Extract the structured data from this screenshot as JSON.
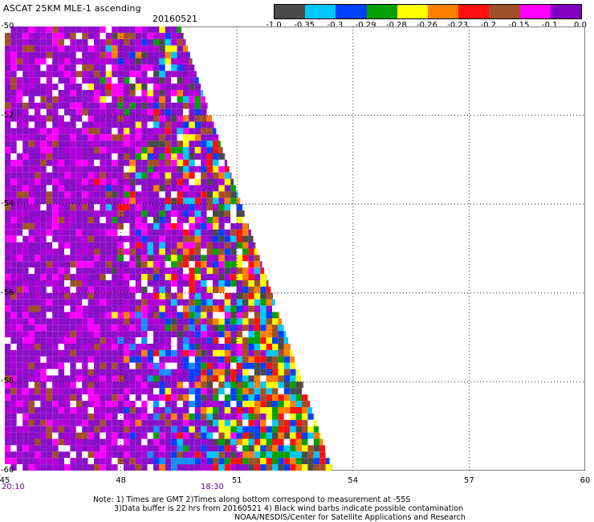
{
  "title": "ASCAT 25KM MLE-1 ascending",
  "date": "20160521",
  "colorbar": {
    "colors": [
      "#4a4a4a",
      "#00c8ff",
      "#0040ff",
      "#00a000",
      "#ffff00",
      "#ff8000",
      "#ff1010",
      "#a05028",
      "#ff00ff",
      "#8000c0"
    ],
    "labels": [
      "-1.0",
      "-0.35",
      "-0.3",
      "-0.29",
      "-0.28",
      "-0.26",
      "-0.23",
      "-0.2",
      "-0.15",
      "-0.1",
      "0.0"
    ]
  },
  "map": {
    "lon_ticks": [
      "45",
      "48",
      "51",
      "54",
      "57",
      "60"
    ],
    "lat_ticks": [
      "-50",
      "-52",
      "-54",
      "-56",
      "-58",
      "-60"
    ],
    "lon_range": [
      45,
      60
    ],
    "lat_range": [
      -50,
      -60
    ],
    "grid": true
  },
  "times": {
    "left": "20:10",
    "middle": "18:30"
  },
  "notes": {
    "line1": "Note: 1) Times are GMT 2)Times along bottom correspond to measurement at -55S",
    "line2": "3)Data buffer is 22 hrs from 20160521 4) Black wind barbs indicate possible contamination",
    "line3": "NOAA/NESDIS/Center for Satellite Applications and Research"
  }
}
